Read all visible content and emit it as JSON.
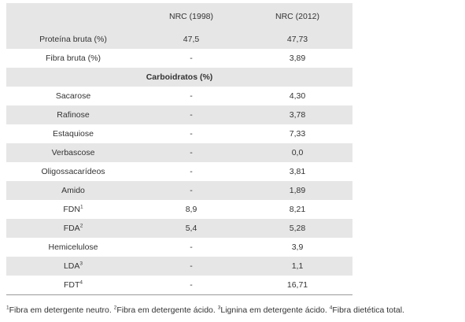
{
  "table": {
    "headers": [
      "",
      "NRC (1998)",
      "NRC (2012)"
    ],
    "rows": [
      {
        "label": "Proteína bruta (%)",
        "sup": "",
        "v1998": "47,5",
        "v2012": "47,73"
      },
      {
        "label": "Fibra bruta (%)",
        "sup": "",
        "v1998": "-",
        "v2012": "3,89"
      },
      {
        "section": "Carboidratos (%)"
      },
      {
        "label": "Sacarose",
        "sup": "",
        "v1998": "-",
        "v2012": "4,30"
      },
      {
        "label": "Rafinose",
        "sup": "",
        "v1998": "-",
        "v2012": "3,78"
      },
      {
        "label": "Estaquiose",
        "sup": "",
        "v1998": "-",
        "v2012": "7,33"
      },
      {
        "label": "Verbascose",
        "sup": "",
        "v1998": "-",
        "v2012": "0,0"
      },
      {
        "label": "Oligossacarídeos",
        "sup": "",
        "v1998": "-",
        "v2012": "3,81"
      },
      {
        "label": "Amido",
        "sup": "",
        "v1998": "-",
        "v2012": "1,89"
      },
      {
        "label": "FDN",
        "sup": "1",
        "v1998": "8,9",
        "v2012": "8,21"
      },
      {
        "label": "FDA",
        "sup": "2",
        "v1998": "5,4",
        "v2012": "5,28"
      },
      {
        "label": "Hemicelulose",
        "sup": "",
        "v1998": "-",
        "v2012": "3,9"
      },
      {
        "label": "LDA",
        "sup": "3",
        "v1998": "-",
        "v2012": "1,1"
      },
      {
        "label": "FDT",
        "sup": "4",
        "v1998": "-",
        "v2012": "16,71"
      }
    ]
  },
  "footnote": [
    {
      "sup": "1",
      "text": "Fibra em detergente neutro. "
    },
    {
      "sup": "2",
      "text": "Fibra em detergente ácido. "
    },
    {
      "sup": "3",
      "text": "Lignina em detergente ácido. "
    },
    {
      "sup": "4",
      "text": "Fibra dietética total."
    }
  ]
}
